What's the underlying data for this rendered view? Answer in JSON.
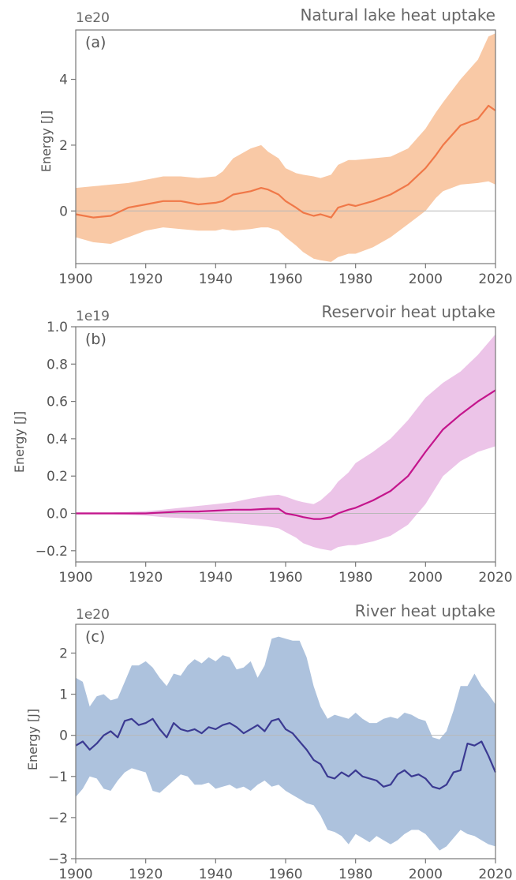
{
  "chart_data": [
    {
      "type": "line",
      "panel_label": "(a)",
      "title": "Natural lake heat uptake",
      "xlabel": "",
      "ylabel": "Energy [J]",
      "y_multiplier_label": "1e20",
      "xlim": [
        1900,
        2020
      ],
      "ylim": [
        -1.6,
        5.5
      ],
      "x_ticks": [
        1900,
        1920,
        1940,
        1960,
        1980,
        2000,
        2020
      ],
      "y_ticks": [
        0,
        2,
        4
      ],
      "y_tick_labels": [
        "0",
        "2",
        "4"
      ],
      "grid": false,
      "line_color": "#f07848",
      "band_color": "#f9c9a6",
      "series": [
        {
          "x": [
            1900,
            1905,
            1910,
            1915,
            1920,
            1925,
            1930,
            1935,
            1940,
            1942,
            1945,
            1950,
            1953,
            1955,
            1958,
            1960,
            1963,
            1965,
            1968,
            1970,
            1973,
            1975,
            1978,
            1980,
            1985,
            1990,
            1995,
            2000,
            2003,
            2005,
            2010,
            2015,
            2018,
            2020
          ],
          "values": [
            -0.1,
            -0.2,
            -0.15,
            0.1,
            0.2,
            0.3,
            0.3,
            0.2,
            0.25,
            0.3,
            0.5,
            0.6,
            0.7,
            0.65,
            0.5,
            0.3,
            0.1,
            -0.05,
            -0.15,
            -0.1,
            -0.2,
            0.1,
            0.2,
            0.15,
            0.3,
            0.5,
            0.8,
            1.3,
            1.7,
            2.0,
            2.6,
            2.8,
            3.2,
            3.05
          ],
          "upper": [
            0.7,
            0.75,
            0.8,
            0.85,
            0.95,
            1.05,
            1.05,
            1.0,
            1.05,
            1.2,
            1.6,
            1.9,
            2.0,
            1.8,
            1.6,
            1.3,
            1.15,
            1.1,
            1.05,
            1.0,
            1.1,
            1.4,
            1.55,
            1.55,
            1.6,
            1.65,
            1.9,
            2.5,
            3.0,
            3.3,
            4.0,
            4.6,
            5.3,
            5.4
          ],
          "lower": [
            -0.8,
            -0.95,
            -1.0,
            -0.8,
            -0.6,
            -0.5,
            -0.55,
            -0.6,
            -0.6,
            -0.55,
            -0.6,
            -0.55,
            -0.5,
            -0.5,
            -0.6,
            -0.8,
            -1.05,
            -1.25,
            -1.45,
            -1.5,
            -1.55,
            -1.4,
            -1.3,
            -1.3,
            -1.1,
            -0.8,
            -0.4,
            0.0,
            0.4,
            0.6,
            0.8,
            0.85,
            0.9,
            0.8
          ]
        }
      ]
    },
    {
      "type": "line",
      "panel_label": "(b)",
      "title": "Reservoir heat uptake",
      "xlabel": "",
      "ylabel": "Energy [J]",
      "y_multiplier_label": "1e19",
      "xlim": [
        1900,
        2020
      ],
      "ylim": [
        -0.26,
        1.0
      ],
      "x_ticks": [
        1900,
        1920,
        1940,
        1960,
        1980,
        2000,
        2020
      ],
      "y_ticks": [
        -0.2,
        0.0,
        0.2,
        0.4,
        0.6,
        0.8,
        1.0
      ],
      "y_tick_labels": [
        "−0.2",
        "0.0",
        "0.2",
        "0.4",
        "0.6",
        "0.8",
        "1.0"
      ],
      "grid": false,
      "line_color": "#c4158c",
      "band_color": "#ecc4e8",
      "series": [
        {
          "x": [
            1900,
            1910,
            1915,
            1920,
            1925,
            1930,
            1935,
            1940,
            1945,
            1950,
            1955,
            1958,
            1960,
            1963,
            1965,
            1968,
            1970,
            1973,
            1975,
            1978,
            1980,
            1985,
            1990,
            1995,
            2000,
            2005,
            2010,
            2015,
            2020
          ],
          "values": [
            0.0,
            0.0,
            0.0,
            0.0,
            0.005,
            0.01,
            0.01,
            0.015,
            0.02,
            0.02,
            0.025,
            0.025,
            0.0,
            -0.01,
            -0.02,
            -0.03,
            -0.03,
            -0.02,
            0.0,
            0.02,
            0.03,
            0.07,
            0.12,
            0.2,
            0.33,
            0.45,
            0.53,
            0.6,
            0.66
          ],
          "upper": [
            0.005,
            0.005,
            0.008,
            0.012,
            0.02,
            0.03,
            0.04,
            0.05,
            0.06,
            0.08,
            0.095,
            0.1,
            0.09,
            0.07,
            0.06,
            0.05,
            0.07,
            0.12,
            0.17,
            0.22,
            0.27,
            0.33,
            0.4,
            0.5,
            0.62,
            0.7,
            0.76,
            0.85,
            0.96
          ],
          "lower": [
            -0.005,
            -0.005,
            -0.008,
            -0.012,
            -0.02,
            -0.025,
            -0.03,
            -0.04,
            -0.05,
            -0.06,
            -0.07,
            -0.08,
            -0.1,
            -0.13,
            -0.16,
            -0.18,
            -0.19,
            -0.2,
            -0.18,
            -0.17,
            -0.17,
            -0.15,
            -0.12,
            -0.06,
            0.05,
            0.2,
            0.28,
            0.33,
            0.36
          ]
        }
      ]
    },
    {
      "type": "line",
      "panel_label": "(c)",
      "title": "River heat uptake",
      "xlabel": "",
      "ylabel": "Energy [J]",
      "y_multiplier_label": "1e20",
      "xlim": [
        1900,
        2020
      ],
      "ylim": [
        -3.0,
        2.7
      ],
      "x_ticks": [
        1900,
        1920,
        1940,
        1960,
        1980,
        2000,
        2020
      ],
      "y_ticks": [
        -3,
        -2,
        -1,
        0,
        1,
        2
      ],
      "y_tick_labels": [
        "−3",
        "−2",
        "−1",
        "0",
        "1",
        "2"
      ],
      "grid": false,
      "line_color": "#3b3a92",
      "band_color": "#adc2dd",
      "series": [
        {
          "x": [
            1900,
            1902,
            1904,
            1906,
            1908,
            1910,
            1912,
            1914,
            1916,
            1918,
            1920,
            1922,
            1924,
            1926,
            1928,
            1930,
            1932,
            1934,
            1936,
            1938,
            1940,
            1942,
            1944,
            1946,
            1948,
            1950,
            1952,
            1954,
            1956,
            1958,
            1960,
            1962,
            1964,
            1966,
            1968,
            1970,
            1972,
            1974,
            1976,
            1978,
            1980,
            1982,
            1984,
            1986,
            1988,
            1990,
            1992,
            1994,
            1996,
            1998,
            2000,
            2002,
            2004,
            2006,
            2008,
            2010,
            2012,
            2014,
            2016,
            2018,
            2020
          ],
          "values": [
            -0.25,
            -0.15,
            -0.35,
            -0.2,
            0.0,
            0.1,
            -0.05,
            0.35,
            0.4,
            0.25,
            0.3,
            0.4,
            0.15,
            -0.05,
            0.3,
            0.15,
            0.1,
            0.15,
            0.05,
            0.2,
            0.15,
            0.25,
            0.3,
            0.2,
            0.05,
            0.15,
            0.25,
            0.1,
            0.35,
            0.4,
            0.15,
            0.05,
            -0.15,
            -0.35,
            -0.6,
            -0.7,
            -1.0,
            -1.05,
            -0.9,
            -1.0,
            -0.85,
            -1.0,
            -1.05,
            -1.1,
            -1.25,
            -1.2,
            -0.95,
            -0.85,
            -1.0,
            -0.95,
            -1.05,
            -1.25,
            -1.3,
            -1.2,
            -0.9,
            -0.85,
            -0.2,
            -0.25,
            -0.15,
            -0.5,
            -0.9
          ],
          "upper": [
            1.4,
            1.3,
            0.7,
            0.95,
            1.0,
            0.85,
            0.9,
            1.3,
            1.7,
            1.7,
            1.8,
            1.65,
            1.4,
            1.2,
            1.5,
            1.45,
            1.7,
            1.85,
            1.75,
            1.9,
            1.8,
            1.95,
            1.9,
            1.6,
            1.65,
            1.8,
            1.4,
            1.7,
            2.35,
            2.4,
            2.35,
            2.3,
            2.3,
            1.9,
            1.2,
            0.7,
            0.4,
            0.5,
            0.45,
            0.4,
            0.55,
            0.4,
            0.3,
            0.3,
            0.4,
            0.45,
            0.4,
            0.55,
            0.5,
            0.4,
            0.35,
            -0.05,
            -0.1,
            0.1,
            0.6,
            1.2,
            1.2,
            1.5,
            1.2,
            1.0,
            0.75
          ],
          "lower": [
            -1.5,
            -1.3,
            -1.0,
            -1.05,
            -1.3,
            -1.35,
            -1.1,
            -0.9,
            -0.8,
            -0.85,
            -0.9,
            -1.35,
            -1.4,
            -1.25,
            -1.1,
            -0.95,
            -1.0,
            -1.2,
            -1.2,
            -1.15,
            -1.3,
            -1.25,
            -1.2,
            -1.3,
            -1.25,
            -1.35,
            -1.2,
            -1.1,
            -1.25,
            -1.2,
            -1.35,
            -1.45,
            -1.55,
            -1.65,
            -1.7,
            -1.95,
            -2.3,
            -2.35,
            -2.45,
            -2.65,
            -2.4,
            -2.5,
            -2.6,
            -2.45,
            -2.55,
            -2.65,
            -2.55,
            -2.4,
            -2.3,
            -2.3,
            -2.4,
            -2.6,
            -2.8,
            -2.7,
            -2.5,
            -2.3,
            -2.4,
            -2.45,
            -2.55,
            -2.65,
            -2.7
          ]
        }
      ]
    }
  ]
}
